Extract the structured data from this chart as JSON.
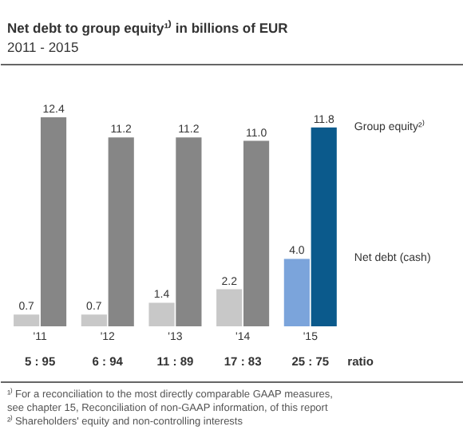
{
  "chart_data": {
    "type": "bar",
    "title": "Net debt to group equity¹⁾ in billions of EUR",
    "subtitle": "2011 - 2015",
    "categories": [
      "'11",
      "'12",
      "'13",
      "'14",
      "'15"
    ],
    "series": [
      {
        "name": "Net debt (cash)",
        "colors": [
          "#c8c8c8",
          "#c8c8c8",
          "#c8c8c8",
          "#c8c8c8",
          "#7ba4db"
        ],
        "values": [
          0.7,
          0.7,
          1.4,
          2.2,
          4.0
        ],
        "value_labels": [
          "0.7",
          "0.7",
          "1.4",
          "2.2",
          "4.0"
        ]
      },
      {
        "name": "Group equity²⁾",
        "colors": [
          "#868686",
          "#868686",
          "#868686",
          "#868686",
          "#0b5a8c"
        ],
        "values": [
          12.4,
          11.2,
          11.2,
          11.0,
          11.8
        ],
        "value_labels": [
          "12.4",
          "11.2",
          "11.2",
          "11.0",
          "11.8"
        ]
      }
    ],
    "grid": false,
    "annotations": [
      "5 : 95",
      "6 : 94",
      "11 : 89",
      "17 : 83",
      "25 : 75",
      "ratio",
      "¹⁾ For a reconciliation to the most directly comparable GAAP measures, see chapter 15, Reconciliation of non-GAAP information, of this report",
      "²⁾ Shareholders' equity and non-controlling interests"
    ]
  }
}
